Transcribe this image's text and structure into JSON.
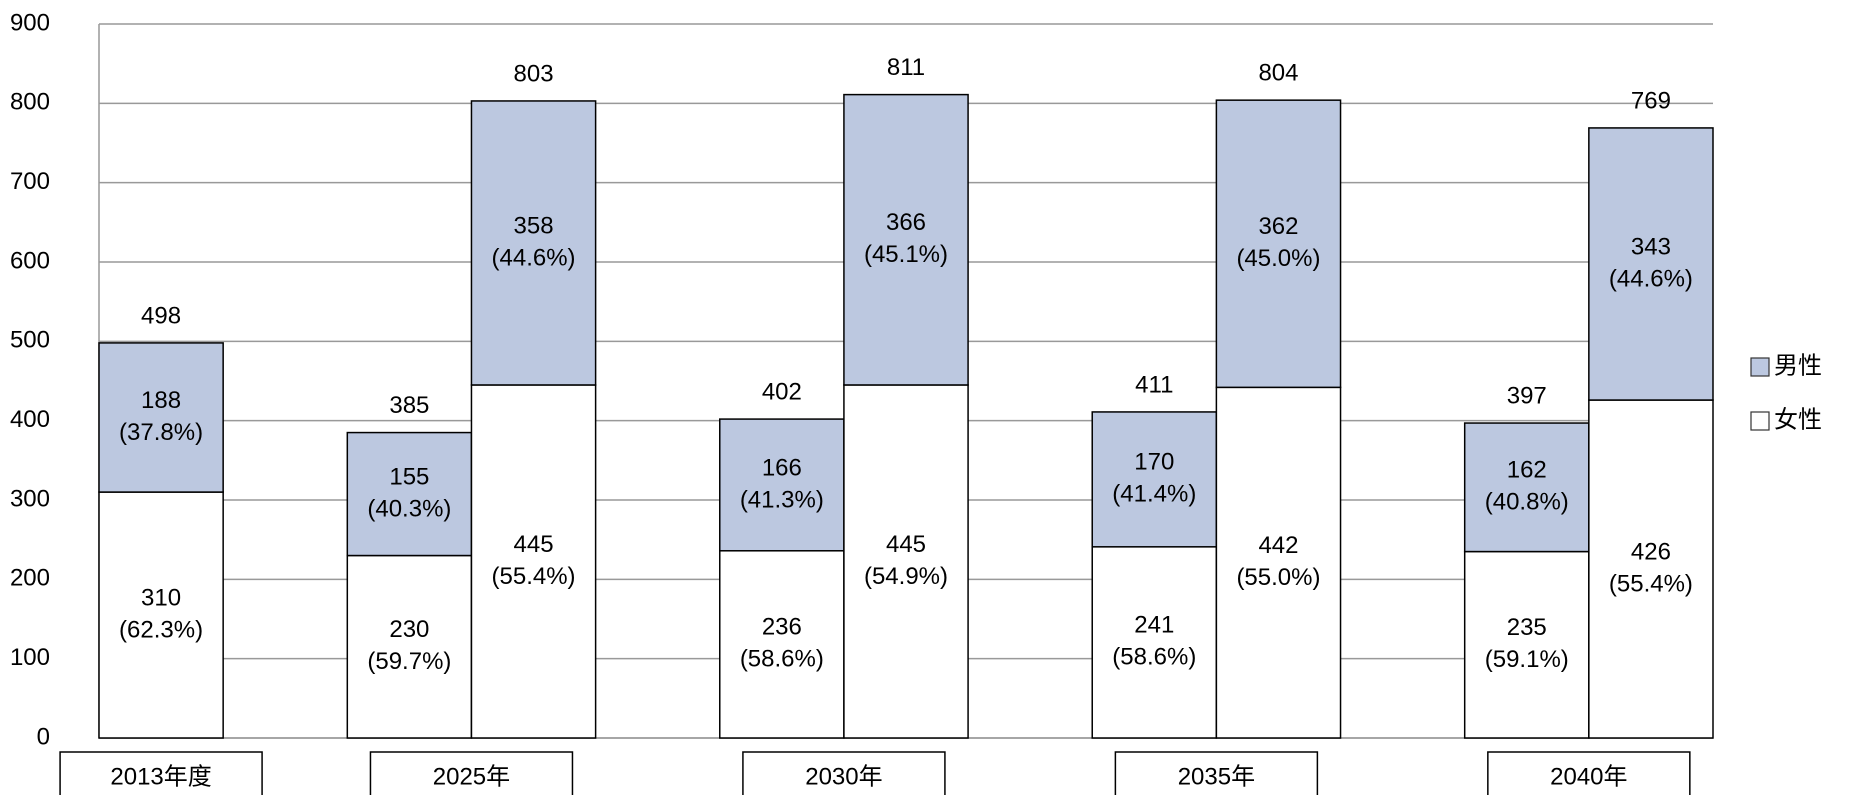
{
  "chart_data": {
    "type": "stacked-bar",
    "categories": [
      "2013年度",
      "2025年",
      null,
      "2030年",
      null,
      "2035年",
      null,
      "2040年",
      null
    ],
    "series": [
      {
        "name": "女性",
        "color": "#ffffff",
        "values": [
          310,
          230,
          445,
          236,
          445,
          241,
          442,
          235,
          426
        ],
        "percent_labels": [
          "(62.3%)",
          "(59.7%)",
          "(55.4%)",
          "(58.6%)",
          "(54.9%)",
          "(58.6%)",
          "(55.0%)",
          "(59.1%)",
          "(55.4%)"
        ]
      },
      {
        "name": "男性",
        "color": "#bcc8e0",
        "values": [
          188,
          155,
          358,
          166,
          366,
          170,
          362,
          162,
          343
        ],
        "percent_labels": [
          "(37.8%)",
          "(40.3%)",
          "(44.6%)",
          "(41.3%)",
          "(45.1%)",
          "(41.4%)",
          "(45.0%)",
          "(40.8%)",
          "(44.6%)"
        ]
      }
    ],
    "totals": [
      498,
      385,
      803,
      402,
      811,
      411,
      804,
      397,
      769
    ],
    "ylim": [
      0,
      900
    ],
    "yticks": [
      0,
      100,
      200,
      300,
      400,
      500,
      600,
      700,
      800,
      900
    ],
    "grid": true,
    "legend": "right"
  }
}
